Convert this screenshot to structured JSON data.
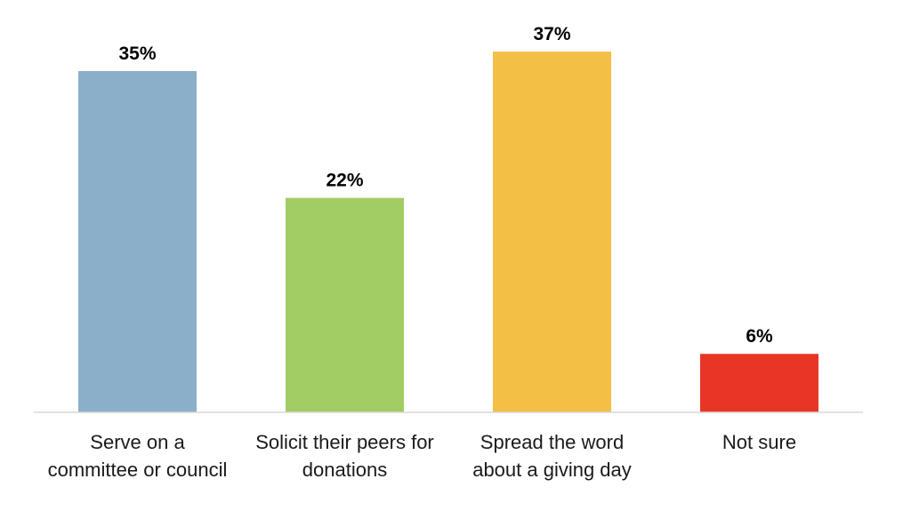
{
  "chart_data": {
    "type": "bar",
    "title": "",
    "xlabel": "",
    "ylabel": "",
    "ylim": [
      0,
      40
    ],
    "grid": false,
    "legend": "none",
    "categories": [
      [
        "Serve on a",
        "committee or council"
      ],
      [
        "Solicit their peers for",
        "donations"
      ],
      [
        "Spread the word",
        "about a giving day"
      ],
      [
        "Not sure"
      ]
    ],
    "values": [
      35,
      22,
      37,
      6
    ],
    "value_labels": [
      "35%",
      "22%",
      "37%",
      "6%"
    ],
    "colors": [
      "#8cafc9",
      "#a2cd64",
      "#f4bf45",
      "#e93525"
    ]
  }
}
